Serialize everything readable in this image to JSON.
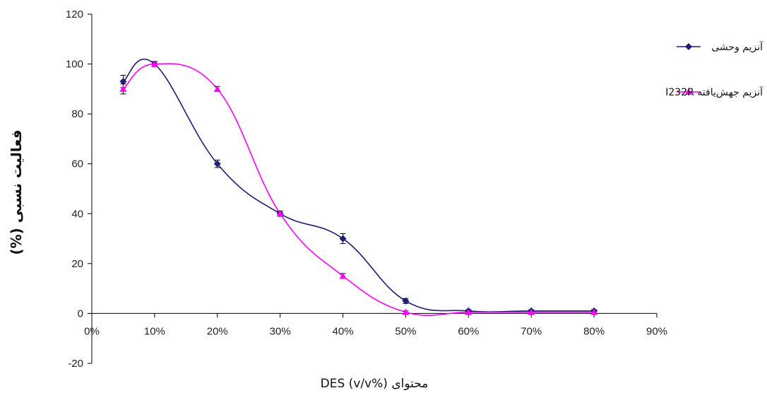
{
  "chart_data": {
    "type": "line",
    "title": "",
    "xlabel": "محتوای DES (v/v%)",
    "ylabel": "فعالیت نسبی (%)",
    "x_ticks": [
      "0%",
      "10%",
      "20%",
      "30%",
      "40%",
      "50%",
      "60%",
      "70%",
      "80%",
      "90%"
    ],
    "y_ticks": [
      "-20",
      "0",
      "20",
      "40",
      "60",
      "80",
      "100",
      "120"
    ],
    "xlim": [
      0,
      90
    ],
    "ylim": [
      -20,
      120
    ],
    "legend_position": "top-right",
    "grid": false,
    "series": [
      {
        "name": "آنزیم وحشی",
        "color": "#1c1c7a",
        "marker": "diamond",
        "x": [
          5,
          10,
          20,
          30,
          40,
          50,
          60,
          70,
          80
        ],
        "y": [
          93,
          100,
          60,
          40,
          30,
          5,
          1,
          1,
          1
        ],
        "err": [
          2.5,
          1,
          1.5,
          1,
          2,
          1,
          0.5,
          0.5,
          0.5
        ]
      },
      {
        "name": "آنزیم جهش‌یافته I232R",
        "color": "#ff00ff",
        "marker": "triangle",
        "x": [
          5,
          10,
          20,
          30,
          40,
          50,
          60,
          70,
          80
        ],
        "y": [
          90,
          100,
          90,
          40,
          15,
          0.5,
          0.5,
          0.5,
          0.5
        ],
        "err": [
          2,
          1,
          1,
          1,
          1,
          0.5,
          0.5,
          0.5,
          0.5
        ]
      }
    ]
  }
}
